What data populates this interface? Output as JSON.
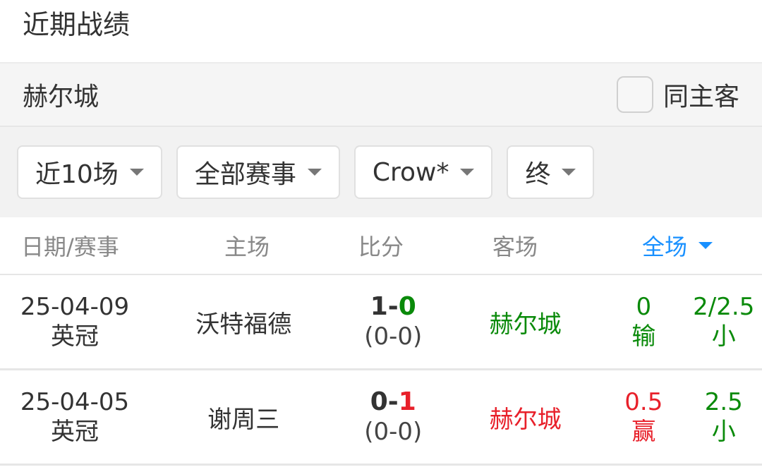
{
  "title": "近期战绩",
  "team": {
    "name": "赫尔城",
    "same_home_label": "同主客",
    "same_home_checked": false
  },
  "filters": [
    "近10场",
    "全部赛事",
    "Crow*",
    "终"
  ],
  "headers": {
    "date": "日期/赛事",
    "home": "主场",
    "score": "比分",
    "away": "客场",
    "full": "全场"
  },
  "colors": {
    "win": "#e8202a",
    "lose": "#0a8a0a",
    "accent": "#1890ff"
  },
  "rows": [
    {
      "date": "25-04-09",
      "league": "英冠",
      "home": "沃特福德",
      "score_home": "1",
      "score_sep": "-",
      "score_away": "0",
      "half": "(0-0)",
      "away": "赫尔城",
      "handicap": "0",
      "handicap_result": "输",
      "ou": "2/2.5",
      "ou_result": "小"
    },
    {
      "date": "25-04-05",
      "league": "英冠",
      "home": "谢周三",
      "score_home": "0",
      "score_sep": "-",
      "score_away": "1",
      "half": "(0-0)",
      "away": "赫尔城",
      "handicap": "0.5",
      "handicap_result": "赢",
      "ou": "2.5",
      "ou_result": "小"
    }
  ]
}
